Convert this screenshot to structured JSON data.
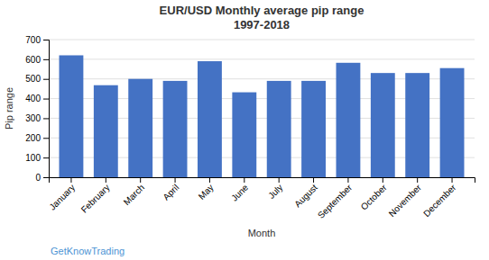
{
  "chart_data": {
    "type": "bar",
    "title": "EUR/USD Monthly average pip range\n1997-2018",
    "xlabel": "Month",
    "ylabel": "Pip range",
    "categories": [
      "January",
      "February",
      "March",
      "April",
      "May",
      "June",
      "July",
      "August",
      "September",
      "October",
      "November",
      "December"
    ],
    "values": [
      620,
      468,
      500,
      490,
      590,
      432,
      490,
      490,
      582,
      530,
      530,
      555
    ],
    "color": "#4472C4",
    "ylim": [
      0,
      700
    ],
    "yticks": [
      0,
      100,
      200,
      300,
      400,
      500,
      600,
      700
    ],
    "grid": true,
    "annotations": [
      "GetKnowTrading"
    ]
  }
}
